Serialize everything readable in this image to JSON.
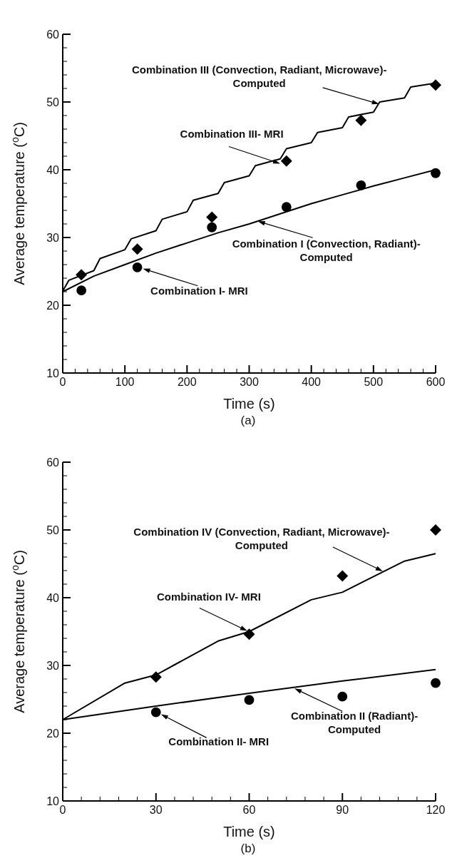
{
  "chart_data": [
    {
      "type": "line",
      "xlabel": "Time (s)",
      "ylabel": "Average temperature ($^{o}$C)",
      "xlim": [
        0,
        600
      ],
      "ylim": [
        10,
        60
      ],
      "xticks": [
        0,
        {
          "value": 20,
          "label": null
        },
        {
          "value": 40,
          "label": null
        },
        {
          "value": 60,
          "label": null
        },
        {
          "value": 80,
          "label": null
        },
        100,
        {
          "value": 120,
          "label": null
        },
        {
          "value": 140,
          "label": null
        },
        {
          "value": 160,
          "label": null
        },
        {
          "value": 180,
          "label": null
        },
        200,
        {
          "value": 220,
          "label": null
        },
        {
          "value": 240,
          "label": null
        },
        {
          "value": 260,
          "label": null
        },
        {
          "value": 280,
          "label": null
        },
        300,
        {
          "value": 320,
          "label": null
        },
        {
          "value": 340,
          "label": null
        },
        {
          "value": 360,
          "label": null
        },
        {
          "value": 380,
          "label": null
        },
        400,
        {
          "value": 420,
          "label": null
        },
        {
          "value": 440,
          "label": null
        },
        {
          "value": 460,
          "label": null
        },
        {
          "value": 480,
          "label": null
        },
        500,
        {
          "value": 520,
          "label": null
        },
        {
          "value": 540,
          "label": null
        },
        {
          "value": 560,
          "label": null
        },
        {
          "value": 580,
          "label": null
        },
        600
      ],
      "yticks": [
        10,
        {
          "value": 12,
          "label": null
        },
        {
          "value": 14,
          "label": null
        },
        {
          "value": 16,
          "label": null
        },
        {
          "value": 18,
          "label": null
        },
        20,
        {
          "value": 22,
          "label": null
        },
        {
          "value": 24,
          "label": null
        },
        {
          "value": 26,
          "label": null
        },
        {
          "value": 28,
          "label": null
        },
        30,
        {
          "value": 32,
          "label": null
        },
        {
          "value": 34,
          "label": null
        },
        {
          "value": 36,
          "label": null
        },
        {
          "value": 38,
          "label": null
        },
        40,
        {
          "value": 42,
          "label": null
        },
        {
          "value": 44,
          "label": null
        },
        {
          "value": 46,
          "label": null
        },
        {
          "value": 48,
          "label": null
        },
        50,
        {
          "value": 52,
          "label": null
        },
        {
          "value": 54,
          "label": null
        },
        {
          "value": 56,
          "label": null
        },
        {
          "value": 58,
          "label": null
        },
        60
      ],
      "series": [
        {
          "color": "#000000",
          "x": [
            0,
            10,
            50,
            60,
            100,
            110,
            150,
            160,
            200,
            210,
            250,
            260,
            300,
            310,
            350,
            360,
            400,
            410,
            450,
            460,
            500,
            510,
            550,
            560,
            600
          ],
          "values": [
            22.1,
            23.7,
            25.1,
            26.9,
            28.2,
            29.8,
            31.0,
            32.7,
            33.8,
            35.5,
            36.5,
            38.1,
            39.1,
            40.6,
            41.6,
            43.1,
            44.0,
            45.5,
            46.2,
            47.8,
            48.5,
            50.0,
            50.6,
            52.2,
            52.8
          ]
        },
        {
          "color": "#000000",
          "x": [
            0,
            50,
            100,
            150,
            200,
            250,
            300,
            350,
            400,
            450,
            500,
            550,
            600
          ],
          "values": [
            22.0,
            24.3,
            26.0,
            27.7,
            29.2,
            30.7,
            32.0,
            33.5,
            35.0,
            36.3,
            37.6,
            38.8,
            40.0
          ]
        },
        {
          "type": "scatter",
          "color": "#000000",
          "marker": "diamond",
          "x": [
            30,
            120,
            240,
            360,
            480,
            600
          ],
          "values": [
            24.5,
            28.3,
            33.0,
            41.3,
            47.3,
            52.5
          ]
        },
        {
          "type": "scatter",
          "color": "#000000",
          "marker": "circle",
          "x": [
            30,
            120,
            240,
            360,
            480,
            600
          ],
          "values": [
            22.2,
            25.6,
            31.5,
            34.5,
            37.7,
            39.5
          ]
        }
      ],
      "annotations": [
        {
          "text": "Combination III (Convection, Radiant, Microwave)-\nComputed",
          "x": 509,
          "y": 49.7
        },
        {
          "text": "Combination III- MRI",
          "x": 350,
          "y": 40.9
        },
        {
          "text": "Combination I (Convection, Radiant)-\nComputed",
          "x": 314,
          "y": 32.4
        },
        {
          "text": "Combination I- MRI",
          "x": 129,
          "y": 25.4
        },
        "(a)"
      ]
    },
    {
      "type": "line",
      "xlabel": "Time (s)",
      "ylabel": "Average temperature ($^{o}$C)",
      "xlim": [
        0,
        120
      ],
      "ylim": [
        10,
        60
      ],
      "xticks": [
        0,
        {
          "value": 6,
          "label": null
        },
        {
          "value": 12,
          "label": null
        },
        {
          "value": 18,
          "label": null
        },
        {
          "value": 24,
          "label": null
        },
        30,
        {
          "value": 36,
          "label": null
        },
        {
          "value": 42,
          "label": null
        },
        {
          "value": 48,
          "label": null
        },
        {
          "value": 54,
          "label": null
        },
        60,
        {
          "value": 66,
          "label": null
        },
        {
          "value": 72,
          "label": null
        },
        {
          "value": 78,
          "label": null
        },
        {
          "value": 84,
          "label": null
        },
        90,
        {
          "value": 96,
          "label": null
        },
        {
          "value": 102,
          "label": null
        },
        {
          "value": 108,
          "label": null
        },
        {
          "value": 114,
          "label": null
        },
        120
      ],
      "yticks": [
        10,
        {
          "value": 12,
          "label": null
        },
        {
          "value": 14,
          "label": null
        },
        {
          "value": 16,
          "label": null
        },
        {
          "value": 18,
          "label": null
        },
        20,
        {
          "value": 22,
          "label": null
        },
        {
          "value": 24,
          "label": null
        },
        {
          "value": 26,
          "label": null
        },
        {
          "value": 28,
          "label": null
        },
        30,
        {
          "value": 32,
          "label": null
        },
        {
          "value": 34,
          "label": null
        },
        {
          "value": 36,
          "label": null
        },
        {
          "value": 38,
          "label": null
        },
        40,
        {
          "value": 42,
          "label": null
        },
        {
          "value": 44,
          "label": null
        },
        {
          "value": 46,
          "label": null
        },
        {
          "value": 48,
          "label": null
        },
        50,
        {
          "value": 52,
          "label": null
        },
        {
          "value": 54,
          "label": null
        },
        {
          "value": 56,
          "label": null
        },
        {
          "value": 58,
          "label": null
        },
        60
      ],
      "series": [
        {
          "color": "#000000",
          "x": [
            0,
            20,
            30,
            50,
            60,
            80,
            90,
            110,
            120
          ],
          "values": [
            22.0,
            27.4,
            28.6,
            33.6,
            35.0,
            39.7,
            40.8,
            45.4,
            46.5
          ]
        },
        {
          "color": "#000000",
          "x": [
            0,
            30,
            60,
            90,
            120
          ],
          "values": [
            22.0,
            24.0,
            25.9,
            27.7,
            29.4
          ]
        },
        {
          "type": "scatter",
          "color": "#000000",
          "marker": "diamond",
          "x": [
            30,
            60,
            90,
            120
          ],
          "values": [
            28.3,
            34.6,
            43.2,
            50.0
          ]
        },
        {
          "type": "scatter",
          "color": "#000000",
          "marker": "circle",
          "x": [
            30,
            60,
            90,
            120
          ],
          "values": [
            23.1,
            24.9,
            25.4,
            27.4
          ]
        }
      ],
      "annotations": [
        {
          "text": "Combination IV (Convection, Radiant, Microwave)-\nComputed",
          "x": 103,
          "y": 43.9
        },
        {
          "text": "Combination IV- MRI",
          "x": 59.4,
          "y": 35.1
        },
        {
          "text": "Combination II (Radiant)-\nComputed",
          "x": 74.6,
          "y": 26.6
        },
        {
          "text": "Combination II- MRI",
          "x": 31.6,
          "y": 22.8
        },
        "(b)"
      ]
    }
  ]
}
